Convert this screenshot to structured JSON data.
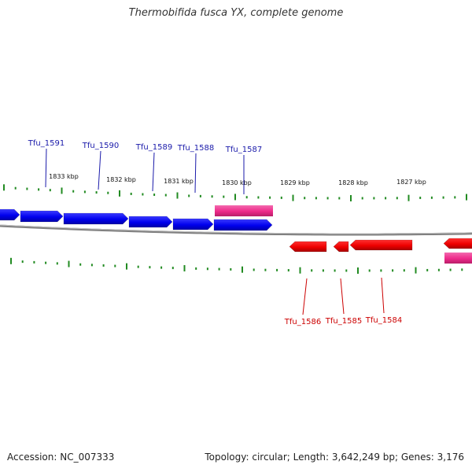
{
  "title": "Thermobifida fusca YX, complete genome",
  "footer": {
    "accession": "Accession: NC_007333",
    "info": "Topology: circular; Length: 3,642,249 bp; Genes: 3,176"
  },
  "colors": {
    "forward_gene": "#0000ee",
    "reverse_gene": "#ee0000",
    "rna_feature": "#ee2a8a",
    "backbone": "#808080",
    "tick": "#228b22",
    "forward_label": "#1a1aaa",
    "reverse_label": "#cc0000"
  },
  "scale": {
    "unit": "kbp",
    "labels": [
      "1833 kbp",
      "1832 kbp",
      "1831 kbp",
      "1830 kbp",
      "1829 kbp",
      "1828 kbp",
      "1827 kbp"
    ]
  },
  "forward_genes": [
    {
      "id": "g0",
      "label": ""
    },
    {
      "id": "g1",
      "label": "Tfu_1591"
    },
    {
      "id": "g2",
      "label": "Tfu_1590"
    },
    {
      "id": "g3",
      "label": "Tfu_1589"
    },
    {
      "id": "g4",
      "label": "Tfu_1588"
    },
    {
      "id": "g5",
      "label": "Tfu_1587"
    }
  ],
  "reverse_genes": [
    {
      "id": "r1",
      "label": "Tfu_1586"
    },
    {
      "id": "r2",
      "label": "Tfu_1585"
    },
    {
      "id": "r3",
      "label": "Tfu_1584"
    },
    {
      "id": "r4",
      "label": ""
    }
  ],
  "rna_features": [
    {
      "id": "rna1",
      "strand": "forward"
    },
    {
      "id": "rna2",
      "strand": "reverse"
    }
  ]
}
